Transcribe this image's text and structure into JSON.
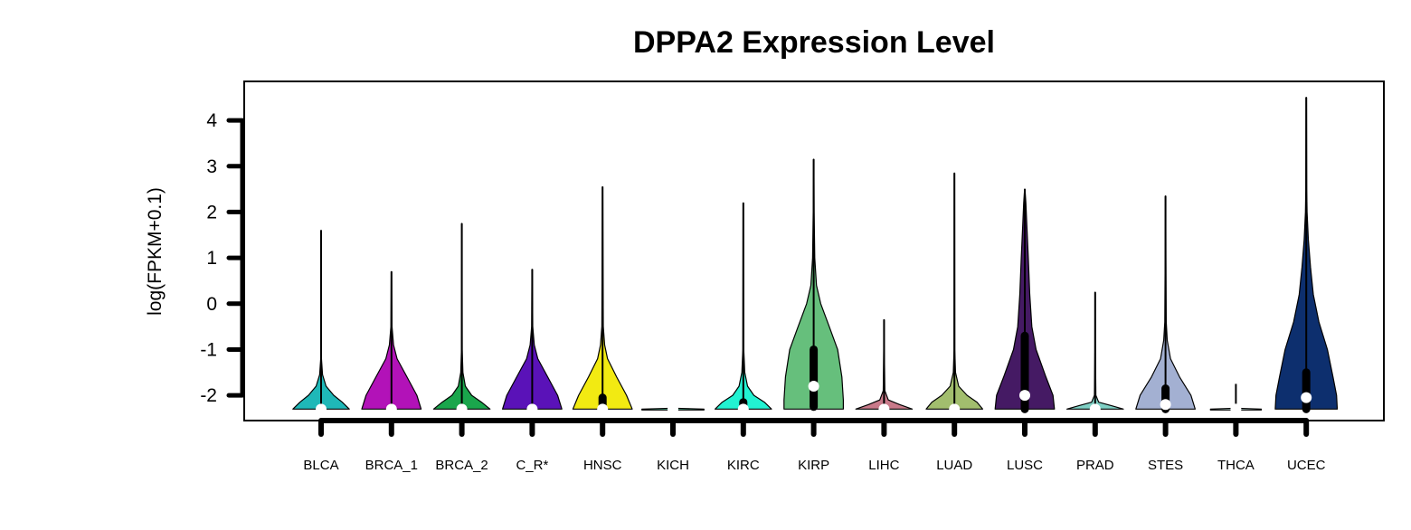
{
  "chart_data": {
    "type": "violin",
    "title": "DPPA2 Expression Level",
    "ylabel": "log(FPKM+0.1)",
    "ylim": [
      -2.55,
      4.85
    ],
    "yticks": [
      -2,
      -1,
      0,
      1,
      2,
      3,
      4
    ],
    "ytick_labels": [
      "-2",
      "-1",
      "0",
      "1",
      "2",
      "3",
      "4"
    ],
    "categories": [
      "BLCA",
      "BRCA_1",
      "BRCA_2",
      "C_R*",
      "HNSC",
      "KICH",
      "KIRC",
      "KIRP",
      "LIHC",
      "LUAD",
      "LUSC",
      "PRAD",
      "STES",
      "THCA",
      "UCEC"
    ],
    "series": [
      {
        "category": "BLCA",
        "color": "#1fb8b8",
        "min": -2.3,
        "max": 1.6,
        "q1": -2.3,
        "median": -2.3,
        "q3": -2.3,
        "shape": [
          [
            -2.3,
            0.4
          ],
          [
            -2.15,
            0.3
          ],
          [
            -2.0,
            0.18
          ],
          [
            -1.8,
            0.07
          ],
          [
            -1.55,
            0.02
          ],
          [
            -1.2,
            0.005
          ],
          [
            1.6,
            0.003
          ]
        ]
      },
      {
        "category": "BRCA_1",
        "color": "#b212b8",
        "min": -2.3,
        "max": 0.7,
        "q1": -2.3,
        "median": -2.3,
        "q3": -2.3,
        "shape": [
          [
            -2.3,
            0.42
          ],
          [
            -2.0,
            0.36
          ],
          [
            -1.6,
            0.22
          ],
          [
            -1.2,
            0.08
          ],
          [
            -0.9,
            0.03
          ],
          [
            -0.5,
            0.008
          ],
          [
            0.7,
            0.003
          ]
        ]
      },
      {
        "category": "BRCA_2",
        "color": "#1aa64c",
        "min": -2.3,
        "max": 1.75,
        "q1": -2.3,
        "median": -2.3,
        "q3": -2.3,
        "shape": [
          [
            -2.3,
            0.4
          ],
          [
            -2.15,
            0.28
          ],
          [
            -2.0,
            0.14
          ],
          [
            -1.8,
            0.05
          ],
          [
            -1.5,
            0.015
          ],
          [
            -1.0,
            0.005
          ],
          [
            1.75,
            0.003
          ]
        ]
      },
      {
        "category": "C_R*",
        "color": "#5a12b8",
        "min": -2.3,
        "max": 0.75,
        "q1": -2.3,
        "median": -2.3,
        "q3": -2.3,
        "shape": [
          [
            -2.3,
            0.42
          ],
          [
            -2.0,
            0.36
          ],
          [
            -1.6,
            0.22
          ],
          [
            -1.2,
            0.08
          ],
          [
            -0.9,
            0.03
          ],
          [
            -0.5,
            0.008
          ],
          [
            0.75,
            0.003
          ]
        ]
      },
      {
        "category": "HNSC",
        "color": "#f2ea12",
        "min": -2.3,
        "max": 2.55,
        "q1": -2.3,
        "median": -2.3,
        "q3": -2.05,
        "shape": [
          [
            -2.3,
            0.42
          ],
          [
            -2.0,
            0.34
          ],
          [
            -1.6,
            0.2
          ],
          [
            -1.2,
            0.07
          ],
          [
            -0.9,
            0.03
          ],
          [
            -0.5,
            0.01
          ],
          [
            1.5,
            0.005
          ],
          [
            2.55,
            0.003
          ]
        ]
      },
      {
        "category": "KICH",
        "color": "#5ec9a0",
        "min": -2.3,
        "max": -2.3,
        "q1": -2.3,
        "median": -2.3,
        "q3": -2.3,
        "shape": [
          [
            -2.32,
            0.44
          ],
          [
            -2.3,
            0.44
          ],
          [
            -2.28,
            0.0
          ]
        ]
      },
      {
        "category": "KIRC",
        "color": "#22f2d2",
        "min": -2.3,
        "max": 2.2,
        "q1": -2.3,
        "median": -2.3,
        "q3": -2.15,
        "shape": [
          [
            -2.3,
            0.4
          ],
          [
            -2.15,
            0.3
          ],
          [
            -2.0,
            0.15
          ],
          [
            -1.8,
            0.06
          ],
          [
            -1.5,
            0.02
          ],
          [
            -1.0,
            0.006
          ],
          [
            2.2,
            0.003
          ]
        ]
      },
      {
        "category": "KIRP",
        "color": "#66bf7c",
        "min": -2.25,
        "max": 3.15,
        "q1": -2.25,
        "median": -1.8,
        "q3": -1.0,
        "shape": [
          [
            -2.3,
            0.42
          ],
          [
            -2.1,
            0.42
          ],
          [
            -1.6,
            0.4
          ],
          [
            -1.0,
            0.34
          ],
          [
            -0.5,
            0.22
          ],
          [
            0.0,
            0.1
          ],
          [
            0.4,
            0.04
          ],
          [
            1.0,
            0.015
          ],
          [
            2.0,
            0.006
          ],
          [
            3.15,
            0.003
          ]
        ]
      },
      {
        "category": "LIHC",
        "color": "#c97a8a",
        "min": -2.3,
        "max": -0.35,
        "q1": -2.3,
        "median": -2.3,
        "q3": -2.3,
        "shape": [
          [
            -2.3,
            0.4
          ],
          [
            -2.2,
            0.22
          ],
          [
            -2.1,
            0.06
          ],
          [
            -1.9,
            0.012
          ],
          [
            -1.0,
            0.004
          ],
          [
            -0.35,
            0.003
          ]
        ]
      },
      {
        "category": "LUAD",
        "color": "#a2be6e",
        "min": -2.3,
        "max": 2.85,
        "q1": -2.3,
        "median": -2.3,
        "q3": -2.3,
        "shape": [
          [
            -2.3,
            0.4
          ],
          [
            -2.15,
            0.32
          ],
          [
            -2.0,
            0.18
          ],
          [
            -1.8,
            0.06
          ],
          [
            -1.5,
            0.015
          ],
          [
            -1.0,
            0.005
          ],
          [
            2.85,
            0.003
          ]
        ]
      },
      {
        "category": "LUSC",
        "color": "#451a64",
        "min": -2.3,
        "max": 2.5,
        "q1": -2.3,
        "median": -2.0,
        "q3": -0.7,
        "shape": [
          [
            -2.3,
            0.42
          ],
          [
            -2.0,
            0.4
          ],
          [
            -1.6,
            0.3
          ],
          [
            -1.0,
            0.16
          ],
          [
            -0.5,
            0.1
          ],
          [
            0.2,
            0.07
          ],
          [
            1.0,
            0.05
          ],
          [
            1.7,
            0.03
          ],
          [
            2.2,
            0.015
          ],
          [
            2.5,
            0.003
          ]
        ]
      },
      {
        "category": "PRAD",
        "color": "#7fd0c4",
        "min": -2.3,
        "max": 0.25,
        "q1": -2.3,
        "median": -2.3,
        "q3": -2.3,
        "shape": [
          [
            -2.3,
            0.4
          ],
          [
            -2.22,
            0.22
          ],
          [
            -2.15,
            0.05
          ],
          [
            -2.0,
            0.01
          ],
          [
            -1.0,
            0.004
          ],
          [
            0.25,
            0.003
          ]
        ]
      },
      {
        "category": "STES",
        "color": "#a3b0d2",
        "min": -2.3,
        "max": 2.35,
        "q1": -2.3,
        "median": -2.2,
        "q3": -1.85,
        "shape": [
          [
            -2.3,
            0.42
          ],
          [
            -2.0,
            0.36
          ],
          [
            -1.6,
            0.2
          ],
          [
            -1.2,
            0.07
          ],
          [
            -0.8,
            0.025
          ],
          [
            -0.4,
            0.01
          ],
          [
            1.0,
            0.005
          ],
          [
            2.35,
            0.003
          ]
        ]
      },
      {
        "category": "THCA",
        "color": "#c8e6e0",
        "min": -2.3,
        "max": -1.75,
        "q1": -2.3,
        "median": -2.3,
        "q3": -2.3,
        "shape": [
          [
            -2.32,
            0.36
          ],
          [
            -2.3,
            0.36
          ],
          [
            -2.28,
            0.0
          ]
        ]
      },
      {
        "category": "UCEC",
        "color": "#0d2f6e",
        "min": -2.3,
        "max": 4.5,
        "q1": -2.3,
        "median": -2.05,
        "q3": -1.5,
        "shape": [
          [
            -2.3,
            0.44
          ],
          [
            -2.0,
            0.43
          ],
          [
            -1.6,
            0.38
          ],
          [
            -1.0,
            0.3
          ],
          [
            -0.4,
            0.18
          ],
          [
            0.2,
            0.1
          ],
          [
            0.8,
            0.06
          ],
          [
            1.4,
            0.03
          ],
          [
            2.0,
            0.012
          ],
          [
            2.5,
            0.006
          ],
          [
            4.5,
            0.003
          ]
        ]
      }
    ]
  }
}
